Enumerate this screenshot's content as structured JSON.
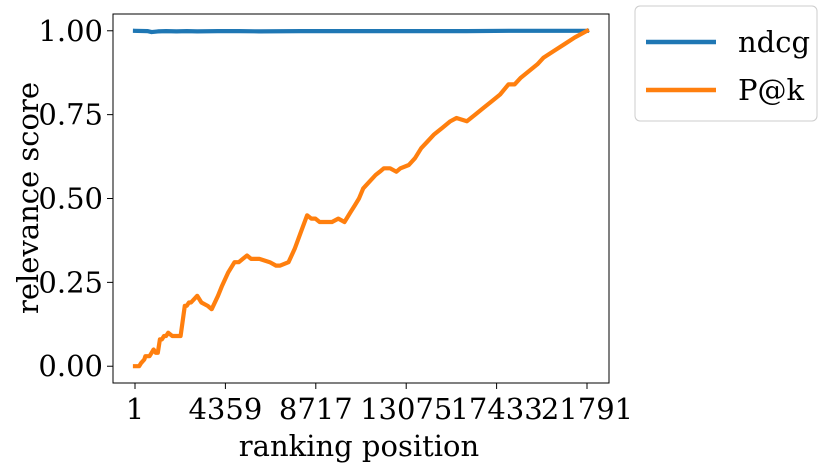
{
  "chart_data": {
    "type": "line",
    "xlabel": "ranking position",
    "ylabel": "relevance score",
    "xlim": [
      1,
      21791
    ],
    "ylim": [
      -0.05,
      1.05
    ],
    "x_ticks": [
      1,
      4359,
      8717,
      13075,
      17433,
      21791
    ],
    "x_tick_labels": [
      "1",
      "4359",
      "8717",
      "13075",
      "17433",
      "21791"
    ],
    "y_ticks": [
      0.0,
      0.25,
      0.5,
      0.75,
      1.0
    ],
    "y_tick_labels": [
      "0.00",
      "0.25",
      "0.50",
      "0.75",
      "1.00"
    ],
    "grid": false,
    "legend_position": "outside-top-right",
    "series": [
      {
        "name": "ndcg",
        "color": "#1f77b4",
        "x": [
          1,
          600,
          800,
          1100,
          1500,
          2000,
          2500,
          3000,
          4000,
          5000,
          6000,
          8000,
          10000,
          12000,
          14000,
          16000,
          18000,
          20000,
          21791
        ],
        "y": [
          1.0,
          0.999,
          0.996,
          0.998,
          0.999,
          0.998,
          0.999,
          0.998,
          0.999,
          0.999,
          0.998,
          0.999,
          0.999,
          0.999,
          0.999,
          0.999,
          1.0,
          1.0,
          1.0
        ]
      },
      {
        "name": "P@k",
        "color": "#ff7f0e",
        "x": [
          1,
          200,
          300,
          450,
          500,
          700,
          800,
          900,
          1000,
          1100,
          1200,
          1300,
          1400,
          1500,
          1600,
          1800,
          2000,
          2200,
          2400,
          2500,
          2600,
          2700,
          3000,
          3200,
          3500,
          3700,
          4000,
          4200,
          4500,
          4800,
          5000,
          5200,
          5400,
          5600,
          5800,
          6000,
          6500,
          6800,
          7000,
          7400,
          7700,
          8000,
          8300,
          8500,
          8700,
          8900,
          9200,
          9500,
          9800,
          10100,
          10400,
          10600,
          10800,
          11000,
          11300,
          11600,
          11800,
          12000,
          12300,
          12600,
          12800,
          13200,
          13500,
          13800,
          14100,
          14400,
          14800,
          15200,
          15500,
          16000,
          16400,
          16800,
          17200,
          17600,
          18000,
          18300,
          18600,
          19000,
          19400,
          19700,
          20200,
          20700,
          21200,
          21791
        ],
        "y": [
          0.0,
          0.0,
          0.01,
          0.02,
          0.03,
          0.03,
          0.04,
          0.05,
          0.04,
          0.04,
          0.08,
          0.08,
          0.09,
          0.09,
          0.1,
          0.09,
          0.09,
          0.09,
          0.18,
          0.18,
          0.19,
          0.19,
          0.21,
          0.19,
          0.18,
          0.17,
          0.21,
          0.24,
          0.28,
          0.31,
          0.31,
          0.32,
          0.33,
          0.32,
          0.32,
          0.32,
          0.31,
          0.3,
          0.3,
          0.31,
          0.35,
          0.4,
          0.45,
          0.44,
          0.44,
          0.43,
          0.43,
          0.43,
          0.44,
          0.43,
          0.46,
          0.48,
          0.5,
          0.53,
          0.55,
          0.57,
          0.58,
          0.59,
          0.59,
          0.58,
          0.59,
          0.6,
          0.62,
          0.65,
          0.67,
          0.69,
          0.71,
          0.73,
          0.74,
          0.73,
          0.75,
          0.77,
          0.79,
          0.81,
          0.84,
          0.84,
          0.86,
          0.88,
          0.9,
          0.92,
          0.94,
          0.96,
          0.98,
          1.0
        ]
      }
    ]
  }
}
